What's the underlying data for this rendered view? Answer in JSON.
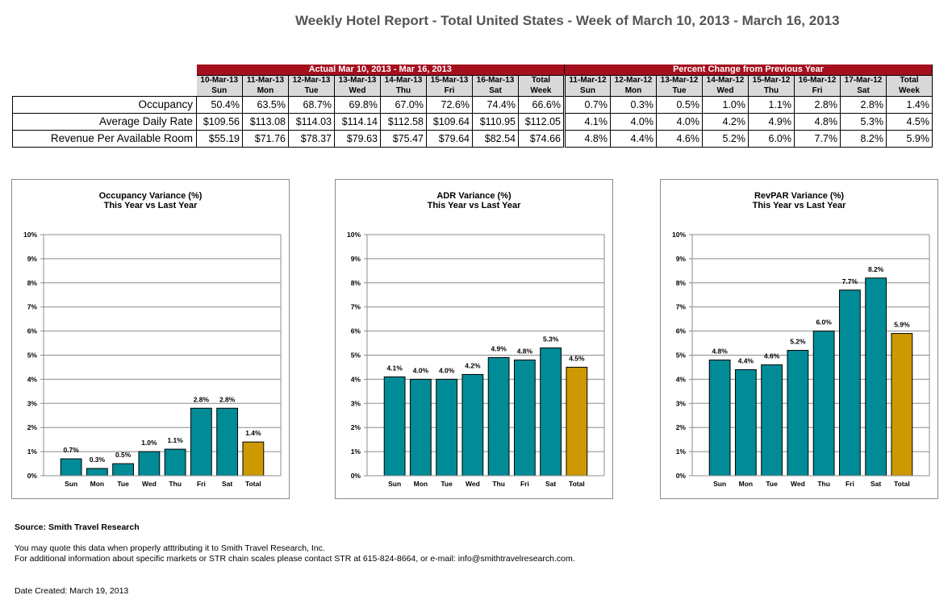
{
  "title": "Weekly Hotel Report - Total United States - Week of March 10, 2013 - March 16, 2013",
  "table": {
    "actual_band": "Actual Mar 10, 2013 - Mar 16, 2013",
    "change_band": "Percent Change from Previous Year",
    "actual_dates": [
      "10-Mar-13",
      "11-Mar-13",
      "12-Mar-13",
      "13-Mar-13",
      "14-Mar-13",
      "15-Mar-13",
      "16-Mar-13",
      "Total"
    ],
    "actual_days": [
      "Sun",
      "Mon",
      "Tue",
      "Wed",
      "Thu",
      "Fri",
      "Sat",
      "Week"
    ],
    "change_dates": [
      "11-Mar-12",
      "12-Mar-12",
      "13-Mar-12",
      "14-Mar-12",
      "15-Mar-12",
      "16-Mar-12",
      "17-Mar-12",
      "Total"
    ],
    "change_days": [
      "Sun",
      "Mon",
      "Tue",
      "Wed",
      "Thu",
      "Fri",
      "Sat",
      "Week"
    ],
    "rows": [
      {
        "label": "Occupancy",
        "actual": [
          "50.4%",
          "63.5%",
          "68.7%",
          "69.8%",
          "67.0%",
          "72.6%",
          "74.4%",
          "66.6%"
        ],
        "change": [
          "0.7%",
          "0.3%",
          "0.5%",
          "1.0%",
          "1.1%",
          "2.8%",
          "2.8%",
          "1.4%"
        ]
      },
      {
        "label": "Average Daily Rate",
        "actual": [
          "$109.56",
          "$113.08",
          "$114.03",
          "$114.14",
          "$112.58",
          "$109.64",
          "$110.95",
          "$112.05"
        ],
        "change": [
          "4.1%",
          "4.0%",
          "4.0%",
          "4.2%",
          "4.9%",
          "4.8%",
          "5.3%",
          "4.5%"
        ]
      },
      {
        "label": "Revenue Per Available Room",
        "actual": [
          "$55.19",
          "$71.76",
          "$78.37",
          "$79.63",
          "$75.47",
          "$79.64",
          "$82.54",
          "$74.66"
        ],
        "change": [
          "4.8%",
          "4.4%",
          "4.6%",
          "5.2%",
          "6.0%",
          "7.7%",
          "8.2%",
          "5.9%"
        ]
      }
    ]
  },
  "colors": {
    "band": "#a50f1e",
    "bar_day": "#008b96",
    "bar_total": "#cc9900",
    "grid": "#8c8c8c"
  },
  "chart_data": [
    {
      "type": "bar",
      "title": "Occupancy Variance (%)",
      "subtitle": "This Year vs Last Year",
      "categories": [
        "Sun",
        "Mon",
        "Tue",
        "Wed",
        "Thu",
        "Fri",
        "Sat",
        "Total"
      ],
      "values": [
        0.7,
        0.3,
        0.5,
        1.0,
        1.1,
        2.8,
        2.8,
        1.4
      ],
      "labels": [
        "0.7%",
        "0.3%",
        "0.5%",
        "1.0%",
        "1.1%",
        "2.8%",
        "2.8%",
        "1.4%"
      ],
      "xlabel": "",
      "ylabel": "",
      "ylim": [
        0,
        10
      ],
      "yticks": [
        "0%",
        "1%",
        "2%",
        "3%",
        "4%",
        "5%",
        "6%",
        "7%",
        "8%",
        "9%",
        "10%"
      ],
      "grid": true
    },
    {
      "type": "bar",
      "title": "ADR Variance (%)",
      "subtitle": "This Year vs Last Year",
      "categories": [
        "Sun",
        "Mon",
        "Tue",
        "Wed",
        "Thu",
        "Fri",
        "Sat",
        "Total"
      ],
      "values": [
        4.1,
        4.0,
        4.0,
        4.2,
        4.9,
        4.8,
        5.3,
        4.5
      ],
      "labels": [
        "4.1%",
        "4.0%",
        "4.0%",
        "4.2%",
        "4.9%",
        "4.8%",
        "5.3%",
        "4.5%"
      ],
      "xlabel": "",
      "ylabel": "",
      "ylim": [
        0,
        10
      ],
      "yticks": [
        "0%",
        "1%",
        "2%",
        "3%",
        "4%",
        "5%",
        "6%",
        "7%",
        "8%",
        "9%",
        "10%"
      ],
      "grid": true
    },
    {
      "type": "bar",
      "title": "RevPAR Variance (%)",
      "subtitle": "This Year vs Last Year",
      "categories": [
        "Sun",
        "Mon",
        "Tue",
        "Wed",
        "Thu",
        "Fri",
        "Sat",
        "Total"
      ],
      "values": [
        4.8,
        4.4,
        4.6,
        5.2,
        6.0,
        7.7,
        8.2,
        5.9
      ],
      "labels": [
        "4.8%",
        "4.4%",
        "4.6%",
        "5.2%",
        "6.0%",
        "7.7%",
        "8.2%",
        "5.9%"
      ],
      "xlabel": "",
      "ylabel": "",
      "ylim": [
        0,
        10
      ],
      "yticks": [
        "0%",
        "1%",
        "2%",
        "3%",
        "4%",
        "5%",
        "6%",
        "7%",
        "8%",
        "9%",
        "10%"
      ],
      "grid": true
    }
  ],
  "footer": {
    "source": "Source: Smith Travel Research",
    "quote": "You may quote this data when properly atttributing it to Smith Travel Research, Inc.",
    "contact": "For additional information about specific markets or STR chain scales please contact STR at 615-824-8664, or e-mail: info@smithtravelresearch.com.",
    "date_created": "Date Created: March 19, 2013"
  }
}
